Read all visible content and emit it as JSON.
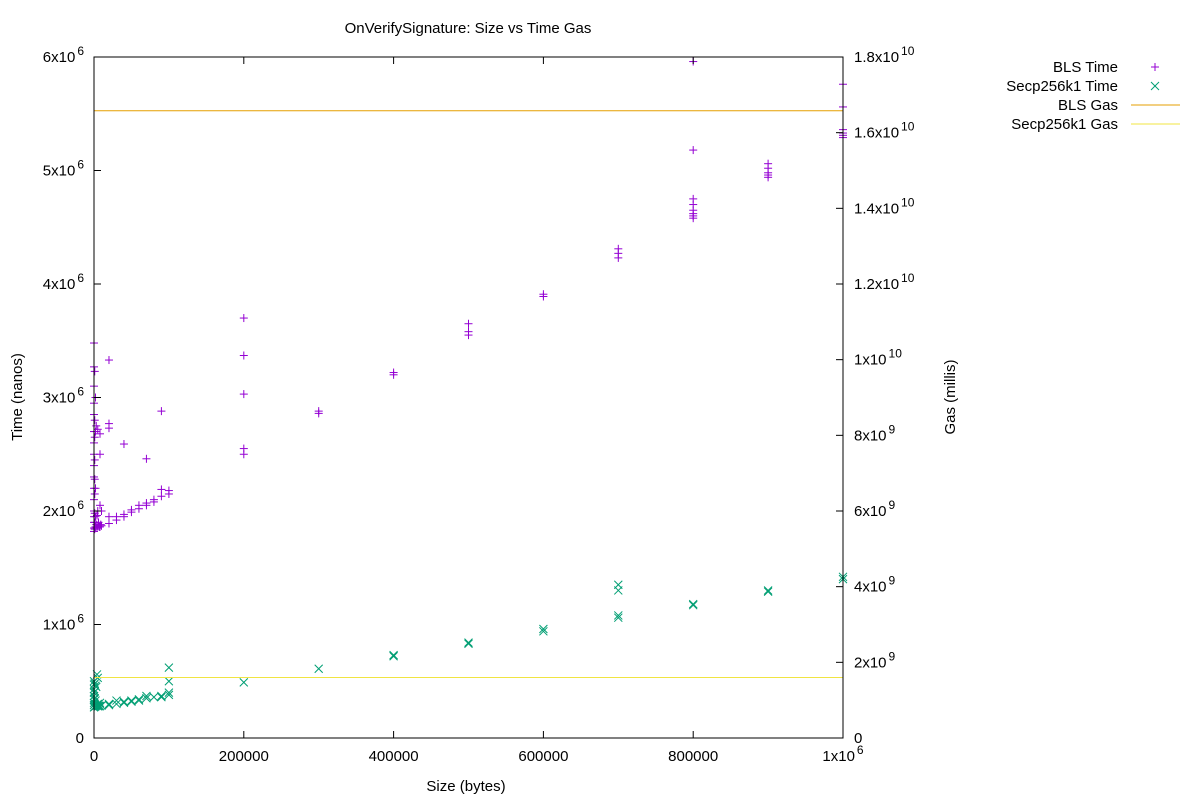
{
  "chart_data": {
    "type": "scatter",
    "title": "OnVerifySignature: Size vs Time   Gas",
    "xlabel": "Size (bytes)",
    "ylabel": "Time (nanos)",
    "y2label": "Gas (millis)",
    "xlim": [
      0,
      1000000
    ],
    "ylim": [
      0,
      6000000
    ],
    "y2lim": [
      0,
      18000000000
    ],
    "grid": false,
    "legend_position": "outside-top-right",
    "x_ticks": [
      {
        "value": 0,
        "base": "0",
        "exp": ""
      },
      {
        "value": 200000,
        "base": "200000",
        "exp": ""
      },
      {
        "value": 400000,
        "base": "400000",
        "exp": ""
      },
      {
        "value": 600000,
        "base": "600000",
        "exp": ""
      },
      {
        "value": 800000,
        "base": "800000",
        "exp": ""
      },
      {
        "value": 1000000,
        "base": "1x10",
        "exp": "6"
      }
    ],
    "y_ticks": [
      {
        "value": 0,
        "base": "0",
        "exp": ""
      },
      {
        "value": 1000000,
        "base": "1x10",
        "exp": "6"
      },
      {
        "value": 2000000,
        "base": "2x10",
        "exp": "6"
      },
      {
        "value": 3000000,
        "base": "3x10",
        "exp": "6"
      },
      {
        "value": 4000000,
        "base": "4x10",
        "exp": "6"
      },
      {
        "value": 5000000,
        "base": "5x10",
        "exp": "6"
      },
      {
        "value": 6000000,
        "base": "6x10",
        "exp": "6"
      }
    ],
    "y2_ticks": [
      {
        "value": 0,
        "base": "0",
        "exp": ""
      },
      {
        "value": 2000000000,
        "base": "2x10",
        "exp": "9"
      },
      {
        "value": 4000000000,
        "base": "4x10",
        "exp": "9"
      },
      {
        "value": 6000000000,
        "base": "6x10",
        "exp": "9"
      },
      {
        "value": 8000000000,
        "base": "8x10",
        "exp": "9"
      },
      {
        "value": 10000000000,
        "base": "1x10",
        "exp": "10"
      },
      {
        "value": 12000000000,
        "base": "1.2x10",
        "exp": "10"
      },
      {
        "value": 14000000000,
        "base": "1.4x10",
        "exp": "10"
      },
      {
        "value": 16000000000,
        "base": "1.6x10",
        "exp": "10"
      },
      {
        "value": 18000000000,
        "base": "1.8x10",
        "exp": "10"
      }
    ],
    "series": [
      {
        "name": "BLS Time",
        "kind": "points",
        "marker": "plus",
        "axis": "y",
        "color": "#9400d3",
        "points": [
          [
            0,
            3480000
          ],
          [
            0,
            3270000
          ],
          [
            0,
            3100000
          ],
          [
            0,
            2950000
          ],
          [
            0,
            2850000
          ],
          [
            0,
            2700000
          ],
          [
            0,
            2600000
          ],
          [
            0,
            2500000
          ],
          [
            0,
            2400000
          ],
          [
            0,
            2300000
          ],
          [
            0,
            2200000
          ],
          [
            0,
            2100000
          ],
          [
            0,
            2000000
          ],
          [
            0,
            1950000
          ],
          [
            0,
            1900000
          ],
          [
            0,
            1850000
          ],
          [
            0,
            1820000
          ],
          [
            1000,
            3230000
          ],
          [
            1000,
            2800000
          ],
          [
            1000,
            2650000
          ],
          [
            1000,
            2450000
          ],
          [
            1000,
            2280000
          ],
          [
            1000,
            2150000
          ],
          [
            1000,
            1980000
          ],
          [
            1000,
            1900000
          ],
          [
            1000,
            1840000
          ],
          [
            2000,
            3000000
          ],
          [
            2000,
            2700000
          ],
          [
            2000,
            2200000
          ],
          [
            2000,
            1950000
          ],
          [
            2000,
            1860000
          ],
          [
            3000,
            2750000
          ],
          [
            3000,
            1880000
          ],
          [
            4000,
            1960000
          ],
          [
            4000,
            1850000
          ],
          [
            5000,
            2720000
          ],
          [
            5000,
            2000000
          ],
          [
            5000,
            1870000
          ],
          [
            6000,
            1900000
          ],
          [
            7000,
            1860000
          ],
          [
            8000,
            2680000
          ],
          [
            8000,
            2500000
          ],
          [
            8000,
            2050000
          ],
          [
            8000,
            1860000
          ],
          [
            9000,
            1880000
          ],
          [
            10000,
            1870000
          ],
          [
            10000,
            2000000
          ],
          [
            20000,
            3330000
          ],
          [
            20000,
            2770000
          ],
          [
            20000,
            2730000
          ],
          [
            20000,
            1950000
          ],
          [
            20000,
            1890000
          ],
          [
            30000,
            1920000
          ],
          [
            30000,
            1950000
          ],
          [
            40000,
            2590000
          ],
          [
            40000,
            1950000
          ],
          [
            40000,
            1970000
          ],
          [
            50000,
            1990000
          ],
          [
            50000,
            2010000
          ],
          [
            60000,
            2020000
          ],
          [
            60000,
            2050000
          ],
          [
            70000,
            2460000
          ],
          [
            70000,
            2050000
          ],
          [
            70000,
            2070000
          ],
          [
            80000,
            2080000
          ],
          [
            80000,
            2100000
          ],
          [
            90000,
            2880000
          ],
          [
            90000,
            2130000
          ],
          [
            90000,
            2190000
          ],
          [
            100000,
            2150000
          ],
          [
            100000,
            2180000
          ],
          [
            200000,
            3700000
          ],
          [
            200000,
            3370000
          ],
          [
            200000,
            3030000
          ],
          [
            200000,
            2550000
          ],
          [
            200000,
            2500000
          ],
          [
            300000,
            2880000
          ],
          [
            300000,
            2860000
          ],
          [
            400000,
            3220000
          ],
          [
            400000,
            3200000
          ],
          [
            500000,
            3650000
          ],
          [
            500000,
            3580000
          ],
          [
            500000,
            3550000
          ],
          [
            600000,
            3910000
          ],
          [
            600000,
            3890000
          ],
          [
            700000,
            4310000
          ],
          [
            700000,
            4270000
          ],
          [
            700000,
            4230000
          ],
          [
            800000,
            5960000
          ],
          [
            800000,
            5180000
          ],
          [
            800000,
            4750000
          ],
          [
            800000,
            4700000
          ],
          [
            800000,
            4650000
          ],
          [
            800000,
            4620000
          ],
          [
            800000,
            4600000
          ],
          [
            800000,
            4580000
          ],
          [
            900000,
            5060000
          ],
          [
            900000,
            5020000
          ],
          [
            900000,
            4980000
          ],
          [
            900000,
            4960000
          ],
          [
            900000,
            4940000
          ],
          [
            1000000,
            5760000
          ],
          [
            1000000,
            5560000
          ],
          [
            1000000,
            5360000
          ],
          [
            1000000,
            5330000
          ],
          [
            1000000,
            5310000
          ],
          [
            1000000,
            5290000
          ]
        ]
      },
      {
        "name": "Secp256k1 Time",
        "kind": "points",
        "marker": "cross",
        "axis": "y",
        "color": "#009e73",
        "points": [
          [
            0,
            500000
          ],
          [
            0,
            470000
          ],
          [
            0,
            430000
          ],
          [
            0,
            400000
          ],
          [
            0,
            370000
          ],
          [
            0,
            340000
          ],
          [
            0,
            310000
          ],
          [
            0,
            290000
          ],
          [
            0,
            270000
          ],
          [
            1000,
            480000
          ],
          [
            1000,
            410000
          ],
          [
            1000,
            350000
          ],
          [
            1000,
            300000
          ],
          [
            1000,
            275000
          ],
          [
            2000,
            460000
          ],
          [
            2000,
            330000
          ],
          [
            2000,
            280000
          ],
          [
            3000,
            450000
          ],
          [
            3000,
            285000
          ],
          [
            4000,
            560000
          ],
          [
            4000,
            290000
          ],
          [
            5000,
            530000
          ],
          [
            5000,
            300000
          ],
          [
            5000,
            280000
          ],
          [
            6000,
            280000
          ],
          [
            7000,
            285000
          ],
          [
            8000,
            310000
          ],
          [
            8000,
            280000
          ],
          [
            10000,
            285000
          ],
          [
            20000,
            300000
          ],
          [
            20000,
            290000
          ],
          [
            30000,
            300000
          ],
          [
            30000,
            330000
          ],
          [
            40000,
            310000
          ],
          [
            40000,
            320000
          ],
          [
            50000,
            330000
          ],
          [
            50000,
            320000
          ],
          [
            60000,
            340000
          ],
          [
            60000,
            330000
          ],
          [
            70000,
            350000
          ],
          [
            70000,
            370000
          ],
          [
            80000,
            360000
          ],
          [
            90000,
            370000
          ],
          [
            90000,
            360000
          ],
          [
            100000,
            620000
          ],
          [
            100000,
            500000
          ],
          [
            100000,
            400000
          ],
          [
            100000,
            380000
          ],
          [
            200000,
            490000
          ],
          [
            300000,
            610000
          ],
          [
            400000,
            730000
          ],
          [
            400000,
            720000
          ],
          [
            500000,
            840000
          ],
          [
            500000,
            830000
          ],
          [
            600000,
            960000
          ],
          [
            600000,
            940000
          ],
          [
            700000,
            1350000
          ],
          [
            700000,
            1300000
          ],
          [
            700000,
            1080000
          ],
          [
            700000,
            1060000
          ],
          [
            800000,
            1180000
          ],
          [
            800000,
            1170000
          ],
          [
            900000,
            1300000
          ],
          [
            900000,
            1290000
          ],
          [
            1000000,
            1420000
          ],
          [
            1000000,
            1400000
          ]
        ]
      },
      {
        "name": "BLS Gas",
        "kind": "hline",
        "axis": "y2",
        "color": "#e69f00",
        "value": 16580000000
      },
      {
        "name": "Secp256k1 Gas",
        "kind": "hline",
        "axis": "y2",
        "color": "#f0e442",
        "value": 1600000000
      }
    ]
  }
}
